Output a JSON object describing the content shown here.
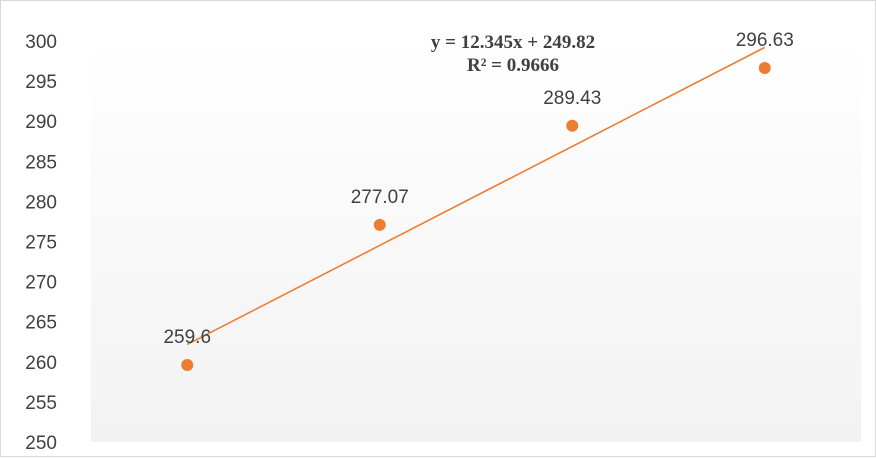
{
  "chart_data": {
    "type": "scatter",
    "title": "",
    "xlabel": "",
    "ylabel": "",
    "x": [
      1,
      2,
      3,
      4
    ],
    "y": [
      259.6,
      277.07,
      289.43,
      296.63
    ],
    "data_labels": [
      "259.6",
      "277.07",
      "289.43",
      "296.63"
    ],
    "ylim": [
      250,
      300
    ],
    "xlim": [
      0.5,
      4.5
    ],
    "yticks": [
      "250",
      "255",
      "260",
      "265",
      "270",
      "275",
      "280",
      "285",
      "290",
      "295",
      "300"
    ],
    "grid": false,
    "legend": "none",
    "trendline": {
      "type": "linear",
      "slope": 12.345,
      "intercept": 249.82,
      "x_range": [
        1,
        4
      ],
      "equation": "y = 12.345x + 249.82",
      "r_squared": "R² = 0.9666"
    },
    "colors": {
      "marker": "#ed7d31",
      "trendline": "#ed7d31",
      "text": "#404040",
      "border": "#d9d9d9",
      "plot_gradient_top": "#ffffff",
      "plot_gradient_bottom": "#f2f2f2"
    }
  }
}
